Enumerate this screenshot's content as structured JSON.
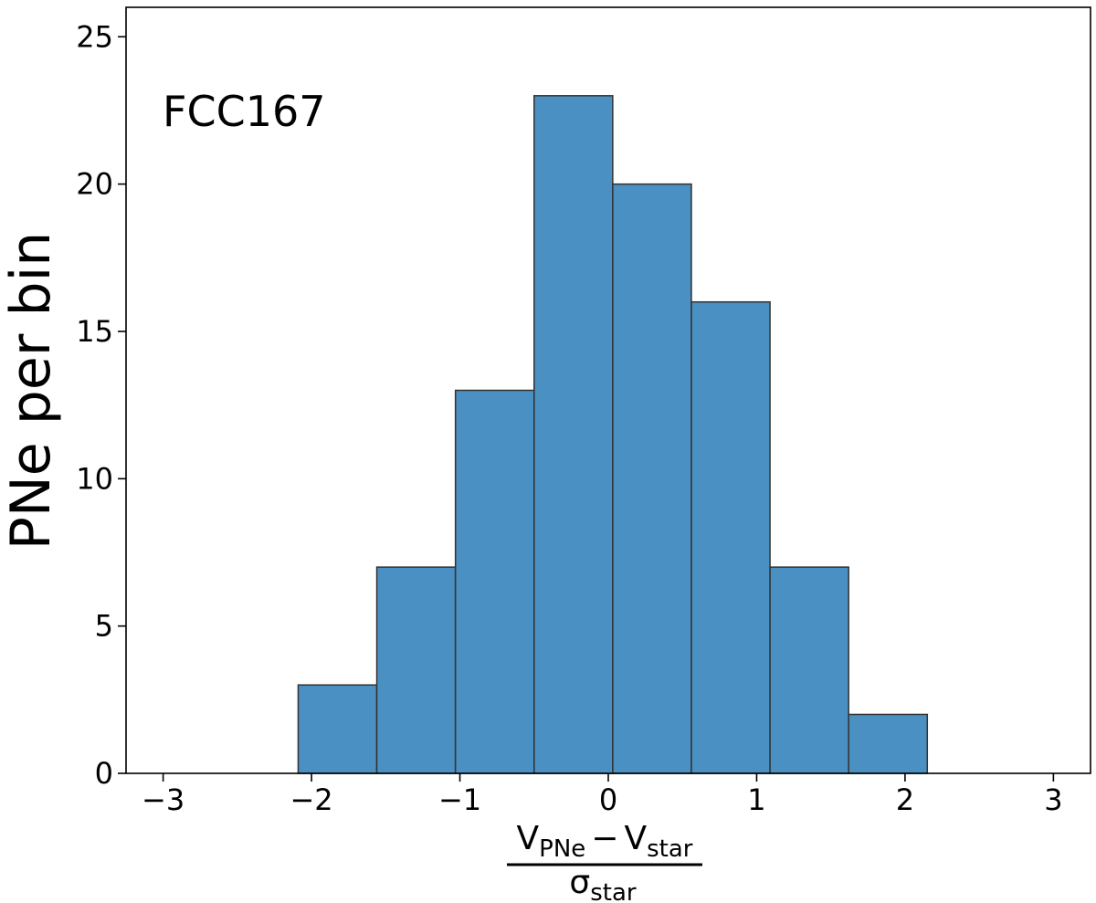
{
  "chart_data": {
    "type": "bar",
    "title": "",
    "annotation": "FCC167",
    "ylabel": "PNe per bin",
    "xlabel": {
      "numerator_main_a": "V",
      "numerator_sub_a": "PNe",
      "operator": "−",
      "numerator_main_b": "V",
      "numerator_sub_b": "star",
      "denominator_main": "σ",
      "denominator_sub": "star"
    },
    "xlim": [
      -3.25,
      3.25
    ],
    "ylim": [
      0,
      26
    ],
    "xticks": [
      -3,
      -2,
      -1,
      0,
      1,
      2,
      3
    ],
    "xtick_labels": [
      "−3",
      "−2",
      "−1",
      "0",
      "1",
      "2",
      "3"
    ],
    "yticks": [
      0,
      5,
      10,
      15,
      20,
      25
    ],
    "ytick_labels": [
      "0",
      "5",
      "10",
      "15",
      "20",
      "25"
    ],
    "bin_edges": [
      -2.09,
      -1.56,
      -1.03,
      -0.5,
      0.03,
      0.56,
      1.09,
      1.62,
      2.15
    ],
    "values": [
      3,
      7,
      13,
      23,
      20,
      16,
      7,
      2
    ],
    "bar_color": "#4a90c2",
    "edge_color": "#333333",
    "grid": false
  }
}
